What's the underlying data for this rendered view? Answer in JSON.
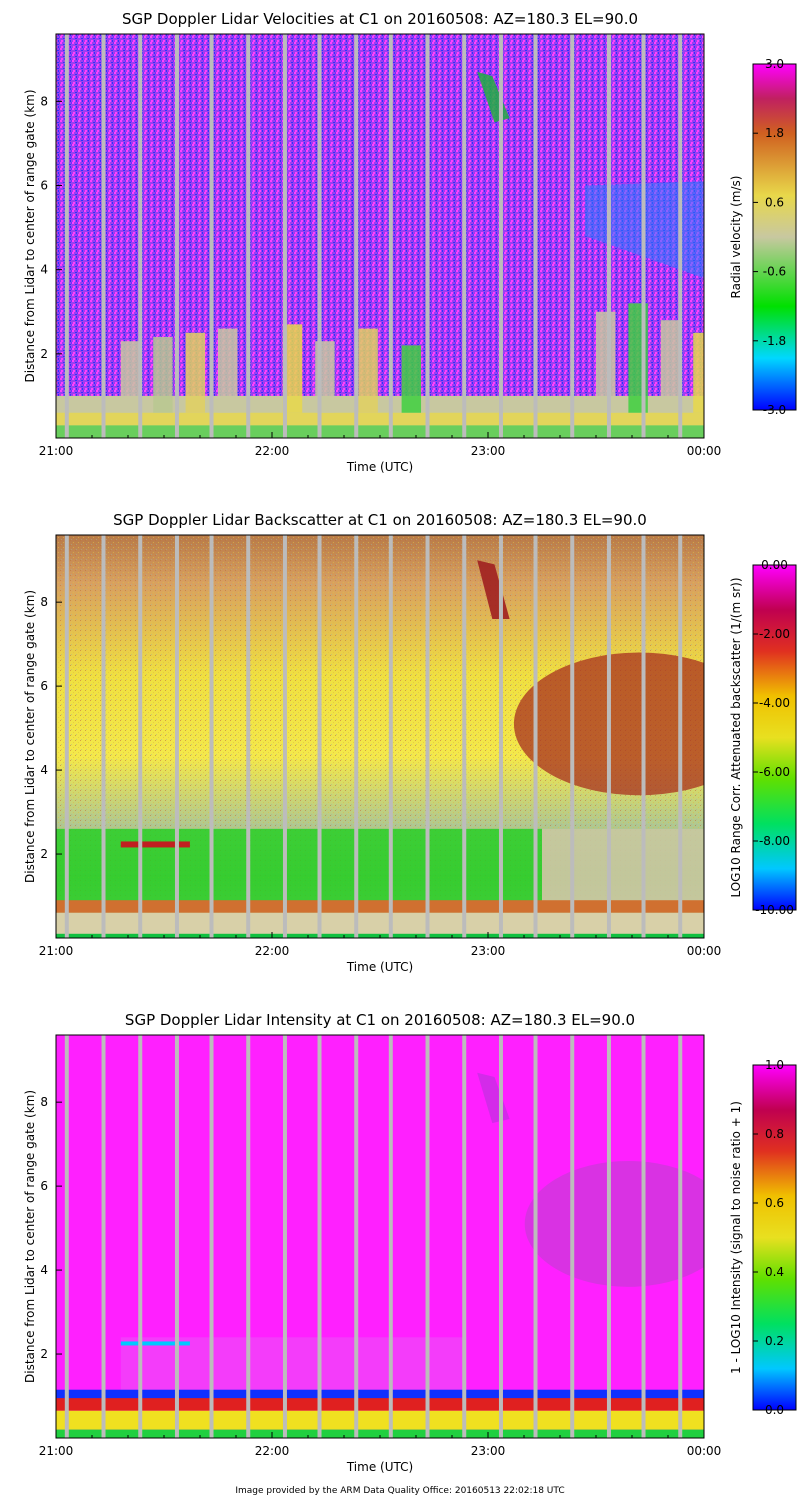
{
  "footer": "Image provided by the ARM Data Quality Office: 20160513 22:02:18 UTC",
  "chart_data": [
    {
      "type": "heatmap",
      "variable": "velocity",
      "title": "SGP Doppler Lidar Velocities at C1 on 20160508: AZ=180.3 EL=90.0",
      "xlabel": "Time (UTC)",
      "ylabel": "Distance from Lidar to center of range gate (km)",
      "xlim": [
        21.0,
        24.0
      ],
      "ylim": [
        0.0,
        9.6
      ],
      "xticks": [
        {
          "value": 21,
          "label": "21:00"
        },
        {
          "value": 22,
          "label": "22:00"
        },
        {
          "value": 23,
          "label": "23:00"
        },
        {
          "value": 24,
          "label": "00:00"
        }
      ],
      "yticks": [
        {
          "value": 2,
          "label": "2"
        },
        {
          "value": 4,
          "label": "4"
        },
        {
          "value": 6,
          "label": "6"
        },
        {
          "value": 8,
          "label": "8"
        }
      ],
      "colorbar": {
        "label": "Radial velocity (m/s)",
        "range": [
          -3.0,
          3.0
        ],
        "ticks": [
          "3.0",
          "1.8",
          "0.6",
          "-0.6",
          "-1.8",
          "-3.0"
        ]
      },
      "gap_columns_utc": [
        21.05,
        21.22,
        21.39,
        21.56,
        21.72,
        21.89,
        22.06,
        22.22,
        22.39,
        22.55,
        22.72,
        22.89,
        23.06,
        23.22,
        23.39,
        23.56,
        23.72,
        23.89
      ]
    },
    {
      "type": "heatmap",
      "variable": "backscatter",
      "title": "SGP Doppler Lidar Backscatter at C1 on 20160508: AZ=180.3 EL=90.0",
      "xlabel": "Time (UTC)",
      "ylabel": "Distance from Lidar to center of range gate (km)",
      "xlim": [
        21.0,
        24.0
      ],
      "ylim": [
        0.0,
        9.6
      ],
      "xticks": [
        {
          "value": 21,
          "label": "21:00"
        },
        {
          "value": 22,
          "label": "22:00"
        },
        {
          "value": 23,
          "label": "23:00"
        },
        {
          "value": 24,
          "label": "00:00"
        }
      ],
      "yticks": [
        {
          "value": 2,
          "label": "2"
        },
        {
          "value": 4,
          "label": "4"
        },
        {
          "value": 6,
          "label": "6"
        },
        {
          "value": 8,
          "label": "8"
        }
      ],
      "colorbar": {
        "label": "LOG10 Range Corr. Attenuated backscatter (1/(m sr))",
        "range": [
          -10.0,
          0.0
        ],
        "ticks": [
          "0.00",
          "-2.00",
          "-4.00",
          "-6.00",
          "-8.00",
          "-10.00"
        ]
      },
      "gap_columns_utc": [
        21.05,
        21.22,
        21.39,
        21.56,
        21.72,
        21.89,
        22.06,
        22.22,
        22.39,
        22.55,
        22.72,
        22.89,
        23.06,
        23.22,
        23.39,
        23.56,
        23.72,
        23.89
      ]
    },
    {
      "type": "heatmap",
      "variable": "intensity",
      "title": "SGP Doppler Lidar Intensity at C1 on 20160508: AZ=180.3 EL=90.0",
      "xlabel": "Time (UTC)",
      "ylabel": "Distance from Lidar to center of range gate (km)",
      "xlim": [
        21.0,
        24.0
      ],
      "ylim": [
        0.0,
        9.6
      ],
      "xticks": [
        {
          "value": 21,
          "label": "21:00"
        },
        {
          "value": 22,
          "label": "22:00"
        },
        {
          "value": 23,
          "label": "23:00"
        },
        {
          "value": 24,
          "label": "00:00"
        }
      ],
      "yticks": [
        {
          "value": 2,
          "label": "2"
        },
        {
          "value": 4,
          "label": "4"
        },
        {
          "value": 6,
          "label": "6"
        },
        {
          "value": 8,
          "label": "8"
        }
      ],
      "colorbar": {
        "label": "1 - LOG10 Intensity (signal to noise ratio + 1)",
        "range": [
          0.0,
          1.0
        ],
        "ticks": [
          "1.0",
          "0.8",
          "0.6",
          "0.4",
          "0.2",
          "0.0"
        ]
      },
      "gap_columns_utc": [
        21.05,
        21.22,
        21.39,
        21.56,
        21.72,
        21.89,
        22.06,
        22.22,
        22.39,
        22.55,
        22.72,
        22.89,
        23.06,
        23.22,
        23.39,
        23.56,
        23.72,
        23.89
      ]
    }
  ]
}
